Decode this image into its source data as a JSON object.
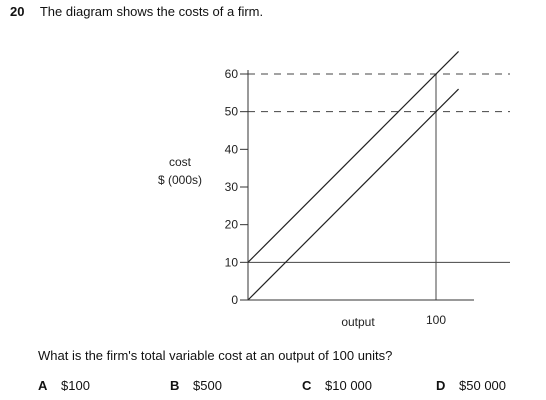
{
  "question": {
    "number": "20",
    "stem": "The diagram shows the costs of a firm.",
    "prompt": "What is the firm's total variable cost at an output of 100 units?"
  },
  "options": [
    {
      "letter": "A",
      "text": "$100"
    },
    {
      "letter": "B",
      "text": "$500"
    },
    {
      "letter": "C",
      "text": "$10 000"
    },
    {
      "letter": "D",
      "text": "$50 000"
    }
  ],
  "chart_data": {
    "type": "line",
    "ylabel_line1": "cost",
    "ylabel_line2": "$ (000s)",
    "xlabel": "output",
    "ylim": [
      0,
      60
    ],
    "y_ticks": [
      0,
      10,
      20,
      30,
      40,
      50,
      60
    ],
    "x_tick_labels": [
      {
        "x": 100,
        "label": "100"
      }
    ],
    "series": [
      {
        "points": [
          [
            0,
            10
          ],
          [
            100,
            60
          ]
        ]
      },
      {
        "points": [
          [
            0,
            0
          ],
          [
            100,
            50
          ]
        ]
      }
    ],
    "reference_lines": [
      {
        "orientation": "horizontal",
        "y": 10,
        "style": "solid"
      },
      {
        "orientation": "horizontal",
        "y": 50,
        "style": "dashed"
      },
      {
        "orientation": "horizontal",
        "y": 60,
        "style": "dashed"
      },
      {
        "orientation": "vertical",
        "x": 100,
        "style": "solid"
      }
    ],
    "grid": false
  }
}
